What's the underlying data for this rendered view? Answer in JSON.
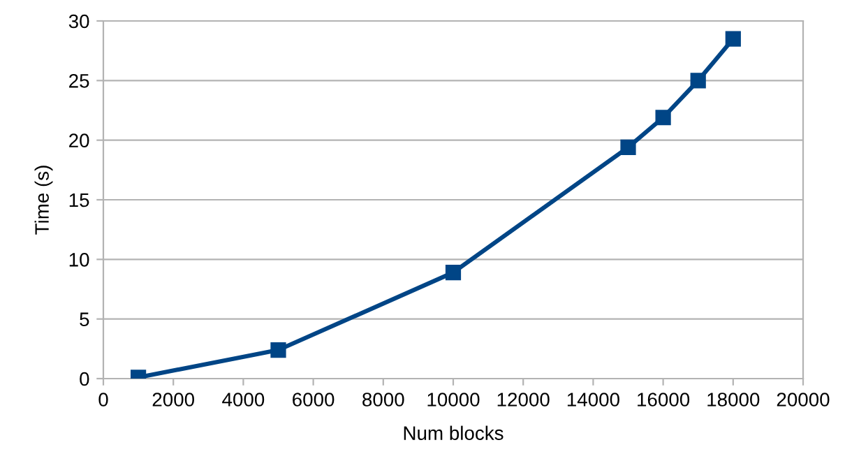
{
  "chart_data": {
    "type": "line",
    "xlabel": "Num blocks",
    "ylabel": "Time (s)",
    "x": [
      1000,
      5000,
      10000,
      15000,
      16000,
      17000,
      18000
    ],
    "series": [
      {
        "color": "#004586",
        "values": [
          0.1,
          2.4,
          8.9,
          19.4,
          21.9,
          25.0,
          28.5
        ]
      }
    ],
    "xlim": [
      0,
      20000
    ],
    "xticks": [
      0,
      2000,
      4000,
      6000,
      8000,
      10000,
      12000,
      14000,
      16000,
      18000,
      20000
    ],
    "ylim": [
      0,
      30
    ],
    "yticks": [
      0,
      5,
      10,
      15,
      20,
      25,
      30
    ],
    "grid": "y",
    "marker": "square",
    "line_style": "solid",
    "legend": false
  }
}
